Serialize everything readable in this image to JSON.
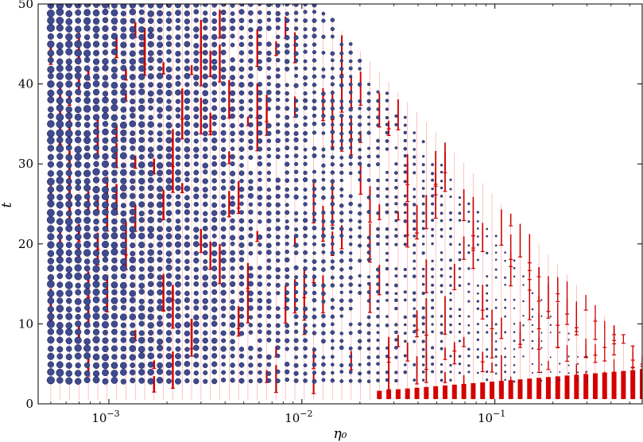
{
  "chart_data": {
    "type": "scatter",
    "title": "",
    "xlabel": "η₀",
    "ylabel": "t",
    "xscale": "log",
    "xlim": [
      0.00043,
      0.58
    ],
    "ylim": [
      0,
      50
    ],
    "grid": false,
    "legend": "none",
    "x_ticks": [
      {
        "value": 0.001,
        "base": "10",
        "exp": "−3"
      },
      {
        "value": 0.01,
        "base": "10",
        "exp": "−2"
      },
      {
        "value": 0.1,
        "base": "10",
        "exp": "−1"
      }
    ],
    "y_ticks": [
      {
        "value": 0,
        "label": "0"
      },
      {
        "value": 10,
        "label": "10"
      },
      {
        "value": 20,
        "label": "20"
      },
      {
        "value": 30,
        "label": "30"
      },
      {
        "value": 40,
        "label": "40"
      },
      {
        "value": 50,
        "label": "50"
      }
    ],
    "series": [
      {
        "marker": "circle",
        "color": "#3f4a8f",
        "edge": "#1a1f4a",
        "x_range": [
          0.0005,
          0.3
        ],
        "x_count": 60,
        "y_start": 2.9,
        "y_step": 1.0,
        "y_count": 48,
        "note_marker_size": "decreases with η₀"
      },
      {
        "marker": "errorbar",
        "color": "#d40000",
        "x_range": [
          0.0005,
          0.58
        ],
        "x_count": 64,
        "y_range": [
          0.5,
          50
        ]
      }
    ]
  }
}
